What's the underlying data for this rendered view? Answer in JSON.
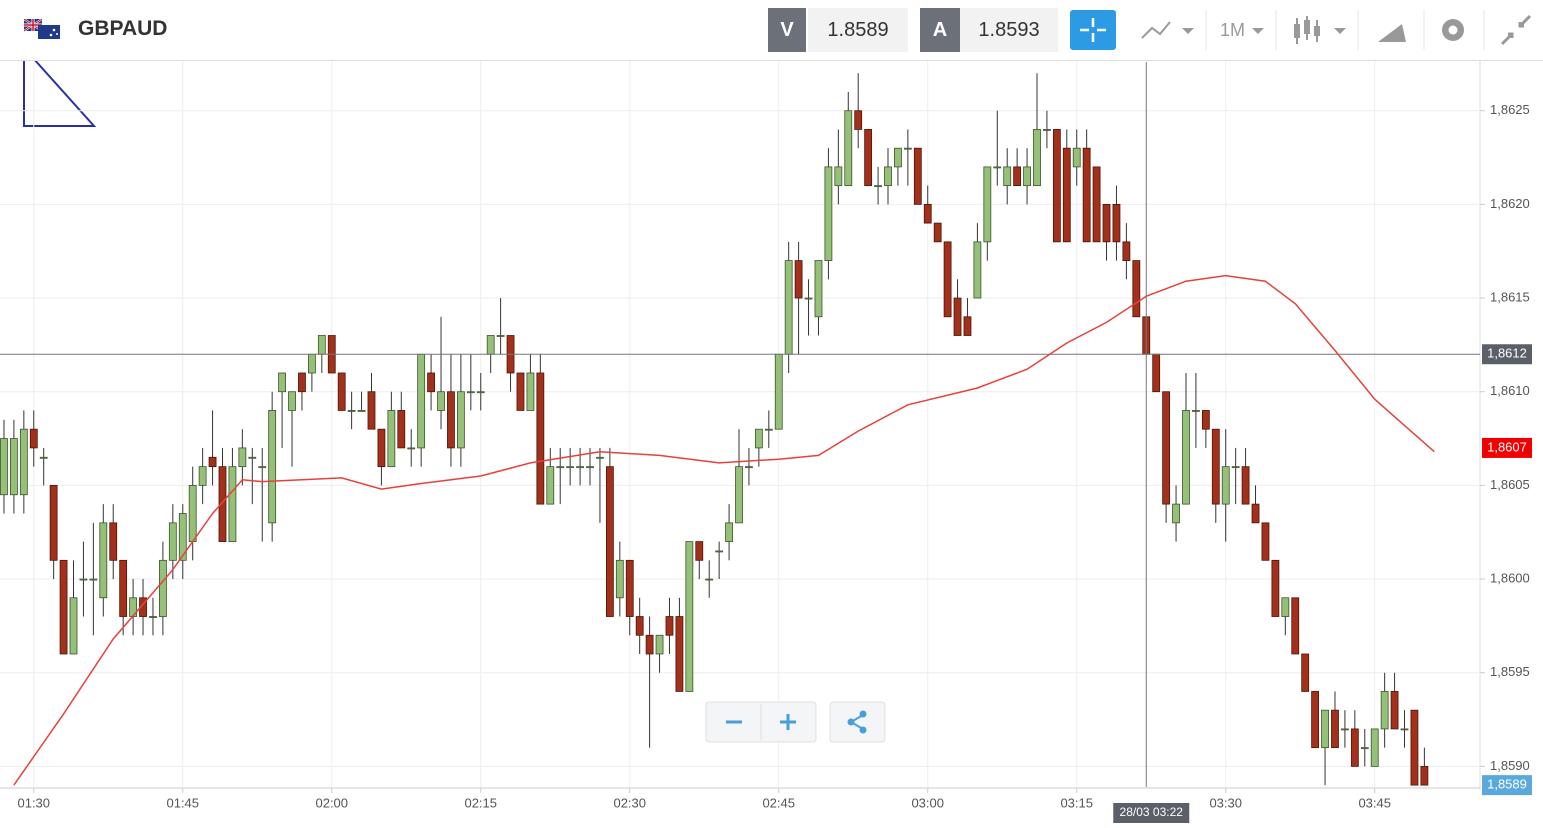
{
  "header": {
    "symbol": "GBPAUD",
    "bid_label": "V",
    "bid": 1.8589,
    "ask_label": "A",
    "ask": 1.8593,
    "timeframe": "1M"
  },
  "chart_data": {
    "type": "candlestick",
    "x": [
      87,
      88,
      89,
      90,
      91,
      92,
      93,
      94,
      95,
      96,
      97,
      98,
      99,
      100,
      101,
      102,
      103,
      104,
      105,
      106,
      107,
      108,
      109,
      110,
      111,
      112,
      113,
      114,
      115,
      116,
      117,
      118,
      119,
      120,
      121,
      122,
      123,
      124,
      125,
      126,
      127,
      128,
      129,
      130,
      131,
      132,
      133,
      134,
      135,
      136,
      137,
      138,
      139,
      140,
      141,
      142,
      143,
      144,
      145,
      146,
      147,
      148,
      149,
      150,
      151,
      152,
      153,
      154,
      155,
      156,
      157,
      158,
      159,
      160,
      161,
      162,
      163,
      164,
      165,
      166,
      167,
      168,
      169,
      170,
      171,
      172,
      173,
      174,
      175,
      176,
      177,
      178,
      179,
      180,
      181,
      182,
      183,
      184,
      185,
      186,
      187,
      188,
      189,
      190,
      191,
      192,
      193,
      194,
      195,
      196,
      197,
      198,
      199,
      200,
      201,
      202,
      203,
      204,
      205,
      206,
      207,
      208,
      209,
      210,
      211,
      212,
      213,
      214,
      215,
      216,
      217,
      218,
      219,
      220,
      221,
      222,
      223,
      224,
      225,
      226,
      227,
      228,
      229,
      230
    ],
    "candles": [
      [
        1.86045,
        1.86085,
        1.86035,
        1.86075
      ],
      [
        1.86045,
        1.86085,
        1.86035,
        1.86075
      ],
      [
        1.86045,
        1.8609,
        1.86035,
        1.8608
      ],
      [
        1.8608,
        1.8609,
        1.8606,
        1.8607
      ],
      [
        1.86065,
        1.8607,
        1.8605,
        1.86065
      ],
      [
        1.8605,
        1.8605,
        1.86,
        1.8601
      ],
      [
        1.8601,
        1.8601,
        1.8596,
        1.8596
      ],
      [
        1.8596,
        1.8601,
        1.8596,
        1.8599
      ],
      [
        1.86,
        1.8602,
        1.8598,
        1.86
      ],
      [
        1.86,
        1.8603,
        1.8597,
        1.86
      ],
      [
        1.8599,
        1.8604,
        1.8598,
        1.8603
      ],
      [
        1.8603,
        1.8604,
        1.86,
        1.8601
      ],
      [
        1.8601,
        1.8601,
        1.8597,
        1.8598
      ],
      [
        1.8598,
        1.86,
        1.8597,
        1.8599
      ],
      [
        1.8599,
        1.86,
        1.8597,
        1.8598
      ],
      [
        1.8598,
        1.8599,
        1.8597,
        1.8598
      ],
      [
        1.8598,
        1.8602,
        1.8597,
        1.8601
      ],
      [
        1.8601,
        1.8604,
        1.86,
        1.8603
      ],
      [
        1.8601,
        1.8604,
        1.86,
        1.86035
      ],
      [
        1.8602,
        1.8606,
        1.8601,
        1.8605
      ],
      [
        1.8605,
        1.8607,
        1.8604,
        1.8606
      ],
      [
        1.86065,
        1.8609,
        1.8605,
        1.8606
      ],
      [
        1.8606,
        1.8607,
        1.8602,
        1.8602
      ],
      [
        1.8602,
        1.8607,
        1.8602,
        1.8606
      ],
      [
        1.8606,
        1.8608,
        1.8605,
        1.8607
      ],
      [
        1.86065,
        1.8607,
        1.8604,
        1.86065
      ],
      [
        1.8606,
        1.8607,
        1.8602,
        1.8606
      ],
      [
        1.8603,
        1.861,
        1.8602,
        1.8609
      ],
      [
        1.861,
        1.8611,
        1.8607,
        1.8611
      ],
      [
        1.8609,
        1.861,
        1.8606,
        1.861
      ],
      [
        1.8611,
        1.8611,
        1.8609,
        1.861
      ],
      [
        1.8611,
        1.8612,
        1.861,
        1.8612
      ],
      [
        1.8612,
        1.8613,
        1.8611,
        1.8613
      ],
      [
        1.8613,
        1.8613,
        1.8611,
        1.8611
      ],
      [
        1.8611,
        1.8611,
        1.8609,
        1.8609
      ],
      [
        1.8609,
        1.861,
        1.8608,
        1.8609
      ],
      [
        1.8609,
        1.861,
        1.8609,
        1.8609
      ],
      [
        1.861,
        1.8611,
        1.8608,
        1.8608
      ],
      [
        1.8608,
        1.8608,
        1.8605,
        1.8606
      ],
      [
        1.8606,
        1.861,
        1.8606,
        1.8609
      ],
      [
        1.8609,
        1.861,
        1.8607,
        1.8607
      ],
      [
        1.8607,
        1.8608,
        1.8606,
        1.8607
      ],
      [
        1.8607,
        1.8612,
        1.8606,
        1.8612
      ],
      [
        1.8611,
        1.8612,
        1.8609,
        1.861
      ],
      [
        1.8609,
        1.8614,
        1.8608,
        1.861
      ],
      [
        1.861,
        1.8612,
        1.8606,
        1.8607
      ],
      [
        1.8607,
        1.8612,
        1.8606,
        1.861
      ],
      [
        1.861,
        1.8612,
        1.8609,
        1.861
      ],
      [
        1.861,
        1.8611,
        1.8609,
        1.861
      ],
      [
        1.8612,
        1.8613,
        1.8611,
        1.8613
      ],
      [
        1.8613,
        1.8615,
        1.8612,
        1.8613
      ],
      [
        1.8613,
        1.8613,
        1.861,
        1.8611
      ],
      [
        1.8611,
        1.8611,
        1.8609,
        1.8609
      ],
      [
        1.8609,
        1.8612,
        1.8609,
        1.8611
      ],
      [
        1.8611,
        1.8612,
        1.8604,
        1.8604
      ],
      [
        1.8604,
        1.8607,
        1.8604,
        1.8606
      ],
      [
        1.8606,
        1.8607,
        1.8604,
        1.8606
      ],
      [
        1.8606,
        1.8607,
        1.8605,
        1.8606
      ],
      [
        1.8606,
        1.8607,
        1.8605,
        1.8606
      ],
      [
        1.8606,
        1.8607,
        1.8605,
        1.8606
      ],
      [
        1.86065,
        1.8607,
        1.8603,
        1.86065
      ],
      [
        1.8606,
        1.8607,
        1.8598,
        1.8598
      ],
      [
        1.8599,
        1.8602,
        1.8598,
        1.8601
      ],
      [
        1.8601,
        1.8601,
        1.8597,
        1.8598
      ],
      [
        1.8598,
        1.8599,
        1.8596,
        1.8597
      ],
      [
        1.8597,
        1.8598,
        1.8591,
        1.8596
      ],
      [
        1.8596,
        1.8597,
        1.8595,
        1.8597
      ],
      [
        1.8598,
        1.8599,
        1.8596,
        1.8597
      ],
      [
        1.8598,
        1.8599,
        1.8594,
        1.8594
      ],
      [
        1.8594,
        1.8602,
        1.8594,
        1.8602
      ],
      [
        1.8602,
        1.8602,
        1.86,
        1.8601
      ],
      [
        1.86,
        1.8601,
        1.8599,
        1.86
      ],
      [
        1.86015,
        1.8602,
        1.86,
        1.86015
      ],
      [
        1.8602,
        1.8604,
        1.8601,
        1.8603
      ],
      [
        1.8603,
        1.8608,
        1.8603,
        1.8606
      ],
      [
        1.8606,
        1.8607,
        1.8605,
        1.8606
      ],
      [
        1.8607,
        1.8608,
        1.8606,
        1.8608
      ],
      [
        1.8608,
        1.8609,
        1.8607,
        1.8608
      ],
      [
        1.8608,
        1.8612,
        1.8608,
        1.8612
      ],
      [
        1.8612,
        1.8618,
        1.8611,
        1.8617
      ],
      [
        1.8617,
        1.8618,
        1.8612,
        1.8615
      ],
      [
        1.8615,
        1.8616,
        1.8613,
        1.8615
      ],
      [
        1.8614,
        1.8617,
        1.8613,
        1.8617
      ],
      [
        1.8617,
        1.8623,
        1.8616,
        1.8622
      ],
      [
        1.8621,
        1.8624,
        1.862,
        1.8622
      ],
      [
        1.8621,
        1.8626,
        1.8621,
        1.8625
      ],
      [
        1.8625,
        1.8627,
        1.8623,
        1.8624
      ],
      [
        1.8624,
        1.8624,
        1.8621,
        1.8621
      ],
      [
        1.8621,
        1.8622,
        1.862,
        1.8621
      ],
      [
        1.8621,
        1.8623,
        1.862,
        1.8622
      ],
      [
        1.8622,
        1.8623,
        1.8621,
        1.8623
      ],
      [
        1.8623,
        1.8624,
        1.8621,
        1.8623
      ],
      [
        1.8623,
        1.8623,
        1.862,
        1.862
      ],
      [
        1.862,
        1.8621,
        1.8619,
        1.8619
      ],
      [
        1.8619,
        1.8619,
        1.8618,
        1.8618
      ],
      [
        1.8618,
        1.8618,
        1.8614,
        1.8614
      ],
      [
        1.8615,
        1.8616,
        1.8613,
        1.8613
      ],
      [
        1.8614,
        1.8615,
        1.8613,
        1.8613
      ],
      [
        1.8615,
        1.8619,
        1.8615,
        1.8618
      ],
      [
        1.8618,
        1.8622,
        1.8617,
        1.8622
      ],
      [
        1.8622,
        1.8625,
        1.8621,
        1.8622
      ],
      [
        1.8621,
        1.8623,
        1.862,
        1.8622
      ],
      [
        1.8622,
        1.8623,
        1.8621,
        1.8621
      ],
      [
        1.8621,
        1.8623,
        1.862,
        1.8622
      ],
      [
        1.8621,
        1.8627,
        1.8621,
        1.8624
      ],
      [
        1.8624,
        1.8625,
        1.8623,
        1.8624
      ],
      [
        1.8624,
        1.8624,
        1.8618,
        1.8618
      ],
      [
        1.8623,
        1.8624,
        1.8618,
        1.8618
      ],
      [
        1.8622,
        1.8624,
        1.8621,
        1.8623
      ],
      [
        1.8623,
        1.8624,
        1.8618,
        1.8618
      ],
      [
        1.8622,
        1.8622,
        1.8618,
        1.8618
      ],
      [
        1.862,
        1.862,
        1.8617,
        1.8618
      ],
      [
        1.862,
        1.8621,
        1.8617,
        1.8618
      ],
      [
        1.8618,
        1.8619,
        1.8616,
        1.8617
      ],
      [
        1.8617,
        1.8617,
        1.8614,
        1.8614
      ],
      [
        1.8614,
        1.8614,
        1.8612,
        1.8612
      ],
      [
        1.8612,
        1.8612,
        1.861,
        1.861
      ],
      [
        1.861,
        1.861,
        1.8603,
        1.8604
      ],
      [
        1.8603,
        1.8605,
        1.8602,
        1.8604
      ],
      [
        1.8604,
        1.8611,
        1.8604,
        1.8609
      ],
      [
        1.8609,
        1.8611,
        1.8607,
        1.8609
      ],
      [
        1.8609,
        1.8609,
        1.8607,
        1.8608
      ],
      [
        1.8608,
        1.8608,
        1.8603,
        1.8604
      ],
      [
        1.8604,
        1.8608,
        1.8602,
        1.8606
      ],
      [
        1.8606,
        1.8607,
        1.8604,
        1.8606
      ],
      [
        1.8606,
        1.8607,
        1.8604,
        1.8604
      ],
      [
        1.8604,
        1.8605,
        1.8603,
        1.8603
      ],
      [
        1.8603,
        1.8603,
        1.8601,
        1.8601
      ],
      [
        1.8601,
        1.8601,
        1.8598,
        1.8598
      ],
      [
        1.8598,
        1.8599,
        1.8597,
        1.8599
      ],
      [
        1.8599,
        1.8599,
        1.8596,
        1.8596
      ],
      [
        1.8596,
        1.8596,
        1.8594,
        1.8594
      ],
      [
        1.8594,
        1.8594,
        1.8591,
        1.8591
      ],
      [
        1.8591,
        1.8593,
        1.8589,
        1.8593
      ],
      [
        1.8593,
        1.8594,
        1.8591,
        1.8591
      ],
      [
        1.8592,
        1.8593,
        1.8591,
        1.8592
      ],
      [
        1.8592,
        1.8593,
        1.859,
        1.859
      ],
      [
        1.8591,
        1.8592,
        1.859,
        1.8591
      ],
      [
        1.859,
        1.8592,
        1.859,
        1.8592
      ],
      [
        1.8592,
        1.8595,
        1.8591,
        1.8594
      ],
      [
        1.8594,
        1.8595,
        1.8592,
        1.8592
      ],
      [
        1.8592,
        1.8593,
        1.8591,
        1.8592
      ],
      [
        1.8593,
        1.8593,
        1.8589,
        1.8589
      ],
      [
        1.859,
        1.8591,
        1.8589,
        1.8589
      ]
    ],
    "colors": {
      "up": "#94c078",
      "down": "#a3301b"
    },
    "ma": {
      "color": "#e8413b",
      "x": [
        88,
        93,
        98,
        104,
        108,
        111,
        113,
        117,
        121,
        125,
        129,
        135,
        140,
        147,
        153,
        159,
        165,
        169,
        173,
        178,
        185,
        190,
        194,
        198,
        202,
        206,
        210,
        214,
        217,
        221,
        225,
        231
      ],
      "values": [
        1.8589,
        1.85928,
        1.85968,
        1.86005,
        1.86035,
        1.86053,
        1.86052,
        1.86053,
        1.86054,
        1.86048,
        1.86051,
        1.86055,
        1.86062,
        1.86068,
        1.86066,
        1.86062,
        1.86064,
        1.86066,
        1.86079,
        1.86093,
        1.86102,
        1.86112,
        1.86126,
        1.86137,
        1.86151,
        1.86159,
        1.86162,
        1.86159,
        1.86147,
        1.86122,
        1.86096,
        1.86068
      ]
    },
    "xlim": [
      86.6,
      235.6
    ],
    "ylim": [
      1.85889,
      1.86276
    ],
    "xticks": [
      {
        "value": 90,
        "label": "01:30"
      },
      {
        "value": 105,
        "label": "01:45"
      },
      {
        "value": 120,
        "label": "02:00"
      },
      {
        "value": 135,
        "label": "02:15"
      },
      {
        "value": 150,
        "label": "02:30"
      },
      {
        "value": 165,
        "label": "02:45"
      },
      {
        "value": 180,
        "label": "03:00"
      },
      {
        "value": 195,
        "label": "03:15"
      },
      {
        "value": 210,
        "label": "03:30"
      },
      {
        "value": 225,
        "label": "03:45"
      }
    ],
    "yticks": [
      {
        "value": 1.859,
        "label": "1,8590"
      },
      {
        "value": 1.8595,
        "label": "1,8595"
      },
      {
        "value": 1.86,
        "label": "1,8600"
      },
      {
        "value": 1.8605,
        "label": "1,8605"
      },
      {
        "value": 1.861,
        "label": "1,8610"
      },
      {
        "value": 1.8615,
        "label": "1,8615"
      },
      {
        "value": 1.862,
        "label": "1,8620"
      },
      {
        "value": 1.8625,
        "label": "1,8625"
      }
    ],
    "grid": true,
    "crosshair": {
      "x": 202,
      "x_label": "28/03 03:22",
      "y": 1.8612,
      "y_label": "1,8612"
    },
    "price_tags": [
      {
        "value": 1.8607,
        "label": "1,8607",
        "color": "#f00000"
      },
      {
        "value": 1.8589,
        "label": "1,8589",
        "color": "#5aa9dc"
      }
    ]
  }
}
